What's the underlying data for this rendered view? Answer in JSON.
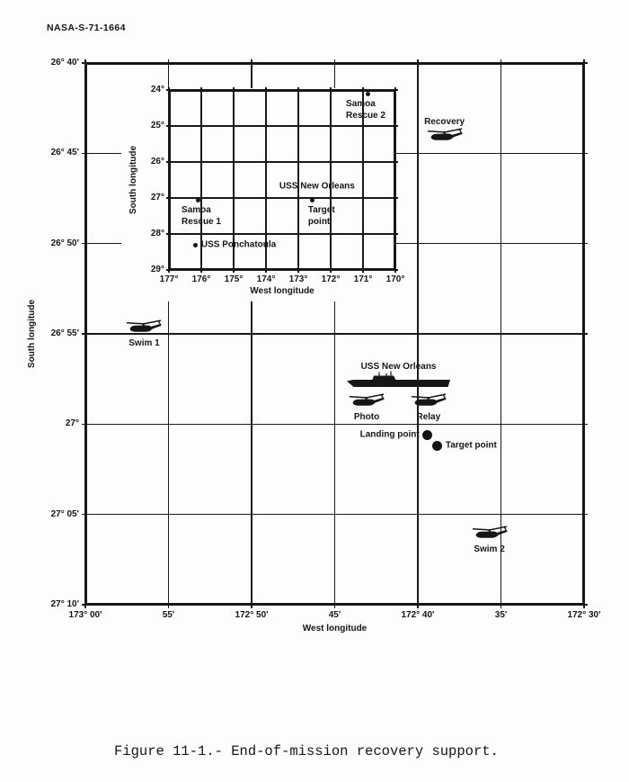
{
  "page": {
    "doc_number": "NASA-S-71-1664",
    "caption": "Figure 11-1.- End-of-mission recovery support.",
    "ink_color": "#161616",
    "paper_color": "#fdfdfb"
  },
  "chart_data": [
    {
      "id": "main",
      "type": "scatter",
      "title": "",
      "xlabel": "West longitude",
      "ylabel": "South longitude",
      "x_range": [
        173.0,
        172.5
      ],
      "y_range": [
        26.6667,
        27.1667
      ],
      "grid": true,
      "x_ticks": [
        {
          "value": 173.0,
          "label": "173° 00'"
        },
        {
          "value": 172.9167,
          "label": "55'"
        },
        {
          "value": 172.8333,
          "label": "172° 50'"
        },
        {
          "value": 172.75,
          "label": "45'"
        },
        {
          "value": 172.6667,
          "label": "172° 40'"
        },
        {
          "value": 172.5833,
          "label": "35'"
        },
        {
          "value": 172.5,
          "label": "172° 30'"
        }
      ],
      "y_ticks": [
        {
          "value": 26.6667,
          "label": "26° 40'"
        },
        {
          "value": 26.75,
          "label": "26° 45'"
        },
        {
          "value": 26.8333,
          "label": "26° 50'"
        },
        {
          "value": 26.9167,
          "label": "26° 55'"
        },
        {
          "value": 27.0,
          "label": "27°"
        },
        {
          "value": 27.0833,
          "label": "27° 05'"
        },
        {
          "value": 27.1667,
          "label": "27° 10'"
        }
      ],
      "points": [
        {
          "name": "Recovery",
          "marker": "helicopter",
          "lon": 172.64,
          "lat": 26.735,
          "label_lines": [
            "Recovery"
          ],
          "label_pos": "above"
        },
        {
          "name": "Swim 1",
          "marker": "helicopter",
          "lon": 172.941,
          "lat": 26.912,
          "label_lines": [
            "Swim 1"
          ],
          "label_pos": "below"
        },
        {
          "name": "USS New Orleans",
          "marker": "ship",
          "lon": 172.686,
          "lat": 26.963,
          "label_lines": [
            "USS New Orleans"
          ],
          "label_pos": "above"
        },
        {
          "name": "Photo",
          "marker": "helicopter",
          "lon": 172.718,
          "lat": 26.98,
          "label_lines": [
            "Photo"
          ],
          "label_pos": "below"
        },
        {
          "name": "Relay",
          "marker": "helicopter",
          "lon": 172.656,
          "lat": 26.98,
          "label_lines": [
            "Relay"
          ],
          "label_pos": "below"
        },
        {
          "name": "Landing point",
          "marker": "dot",
          "lon": 172.657,
          "lat": 27.01,
          "label_lines": [
            "Landing point"
          ],
          "label_pos": "left"
        },
        {
          "name": "Target point",
          "marker": "dot",
          "lon": 172.647,
          "lat": 27.02,
          "label_lines": [
            "Target point"
          ],
          "label_pos": "right"
        },
        {
          "name": "Swim 2",
          "marker": "helicopter",
          "lon": 172.595,
          "lat": 27.102,
          "label_lines": [
            "Swim 2"
          ],
          "label_pos": "below"
        }
      ]
    },
    {
      "id": "inset",
      "type": "scatter",
      "title": "",
      "xlabel": "West longitude",
      "ylabel": "South longitude",
      "x_range": [
        177,
        170
      ],
      "y_range": [
        24,
        29
      ],
      "grid": true,
      "x_ticks": [
        {
          "value": 177,
          "label": "177°"
        },
        {
          "value": 176,
          "label": "176°"
        },
        {
          "value": 175,
          "label": "175°"
        },
        {
          "value": 174,
          "label": "174°"
        },
        {
          "value": 173,
          "label": "173°"
        },
        {
          "value": 172,
          "label": "172°"
        },
        {
          "value": 171,
          "label": "171°"
        },
        {
          "value": 170,
          "label": "170°"
        }
      ],
      "y_ticks": [
        {
          "value": 24,
          "label": "24°"
        },
        {
          "value": 25,
          "label": "25°"
        },
        {
          "value": 26,
          "label": "26°"
        },
        {
          "value": 27,
          "label": "27°"
        },
        {
          "value": 28,
          "label": "28°"
        },
        {
          "value": 29,
          "label": "29°"
        }
      ],
      "points": [
        {
          "name": "Samoa Rescue 2",
          "marker": "dot-small",
          "lon": 170.86,
          "lat": 24.1,
          "label_lines": [
            "Samoa",
            "Rescue 2"
          ],
          "label_pos": "below-left",
          "label_dx": -24
        },
        {
          "name": "Samoa Rescue 1",
          "marker": "dot-small",
          "lon": 176.11,
          "lat": 27.05,
          "label_lines": [
            "Samoa",
            "Rescue 1"
          ],
          "label_pos": "below-left",
          "label_dx": -18
        },
        {
          "name": "USS New Orleans",
          "marker": "none",
          "lon": 172.42,
          "lat": 26.68,
          "label_lines": [
            "USS New Orleans"
          ],
          "label_pos": "center"
        },
        {
          "name": "Target point",
          "marker": "dot-small",
          "lon": 172.56,
          "lat": 27.05,
          "label_lines": [
            "Target",
            "point"
          ],
          "label_pos": "below-left",
          "label_dx": -5
        },
        {
          "name": "USS Ponchatoula",
          "marker": "dot-small",
          "lon": 176.17,
          "lat": 28.3,
          "label_lines": [
            "USS Ponchatoula"
          ],
          "label_pos": "right"
        }
      ]
    }
  ]
}
